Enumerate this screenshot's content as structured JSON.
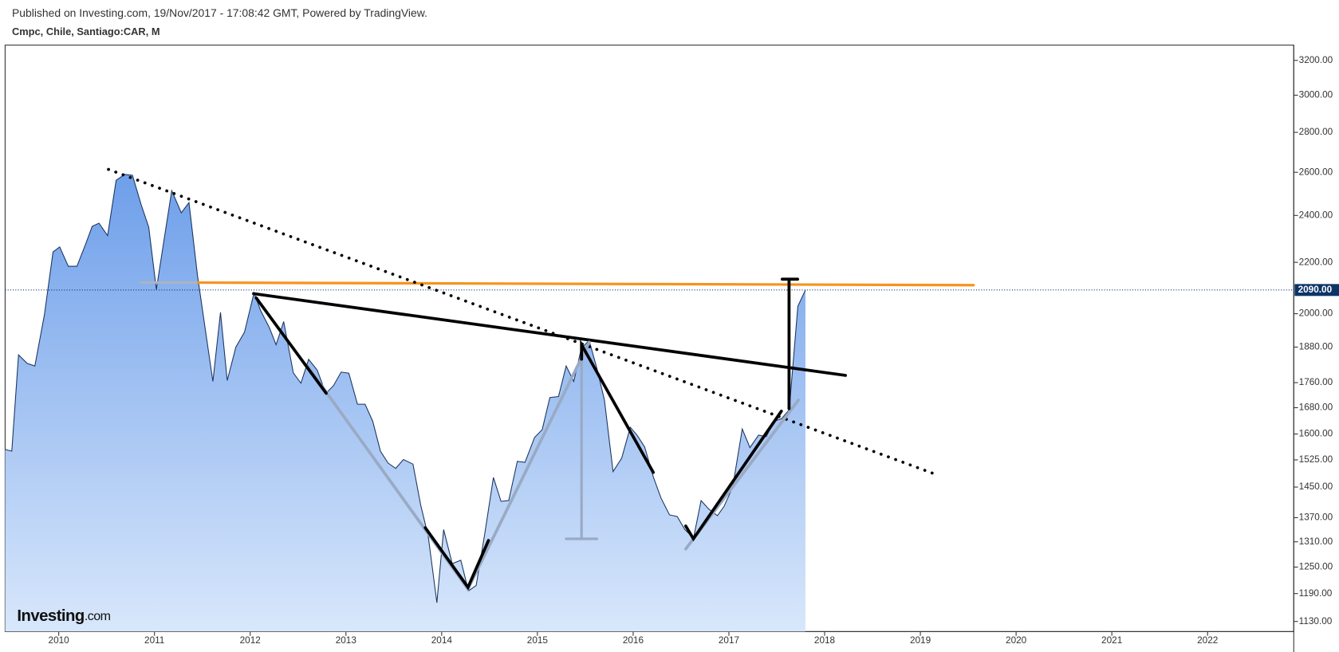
{
  "chart_data": {
    "type": "area",
    "subtitle": "Published on Investing.com, 19/Nov/2017 - 17:08:42 GMT, Powered by TradingView.",
    "title": "Cmpc, Chile, Santiago:CAR, M",
    "watermark": {
      "brand": "Investing",
      "suffix": ".com"
    },
    "color": "#1a3560",
    "fill_top": "#6e9fea",
    "fill_bottom": "#d8e7fb",
    "log_y": true,
    "xlim": [
      2009.44,
      2022.9
    ],
    "xticks": [
      2010,
      2011,
      2012,
      2013,
      2014,
      2015,
      2016,
      2017,
      2018,
      2019,
      2020,
      2021,
      2022
    ],
    "ylim": [
      1109,
      3292
    ],
    "yticks": [
      {
        "value": 1130,
        "label": "1130.00"
      },
      {
        "value": 1190,
        "label": "1190.00"
      },
      {
        "value": 1250,
        "label": "1250.00"
      },
      {
        "value": 1310,
        "label": "1310.00"
      },
      {
        "value": 1370,
        "label": "1370.00"
      },
      {
        "value": 1450,
        "label": "1450.00"
      },
      {
        "value": 1525,
        "label": "1525.00"
      },
      {
        "value": 1600,
        "label": "1600.00"
      },
      {
        "value": 1680,
        "label": "1680.00"
      },
      {
        "value": 1760,
        "label": "1760.00"
      },
      {
        "value": 1880,
        "label": "1880.00"
      },
      {
        "value": 2000,
        "label": "2000.00"
      },
      {
        "value": 2200,
        "label": "2200.00"
      },
      {
        "value": 2400,
        "label": "2400.00"
      },
      {
        "value": 2600,
        "label": "2600.00"
      },
      {
        "value": 2800,
        "label": "2800.00"
      },
      {
        "value": 3000,
        "label": "3000.00"
      },
      {
        "value": 3200,
        "label": "3200.00"
      }
    ],
    "last_price": {
      "value": 2090,
      "label": "2090.00",
      "color": "#0d3466"
    },
    "x": [
      2009.44,
      2009.51,
      2009.58,
      2009.67,
      2009.75,
      2009.85,
      2009.94,
      2010.01,
      2010.1,
      2010.19,
      2010.28,
      2010.35,
      2010.42,
      2010.51,
      2010.6,
      2010.69,
      2010.77,
      2010.86,
      2010.94,
      2011.02,
      2011.1,
      2011.18,
      2011.28,
      2011.36,
      2011.45,
      2011.53,
      2011.61,
      2011.69,
      2011.76,
      2011.85,
      2011.94,
      2012.04,
      2012.11,
      2012.2,
      2012.27,
      2012.35,
      2012.45,
      2012.53,
      2012.61,
      2012.7,
      2012.79,
      2012.87,
      2012.95,
      2013.03,
      2013.12,
      2013.2,
      2013.28,
      2013.36,
      2013.44,
      2013.52,
      2013.6,
      2013.7,
      2013.78,
      2013.86,
      2013.95,
      2014.02,
      2014.11,
      2014.2,
      2014.28,
      2014.36,
      2014.45,
      2014.54,
      2014.62,
      2014.7,
      2014.79,
      2014.87,
      2014.97,
      2015.05,
      2015.13,
      2015.22,
      2015.3,
      2015.38,
      2015.46,
      2015.54,
      2015.62,
      2015.7,
      2015.79,
      2015.88,
      2015.97,
      2016.04,
      2016.12,
      2016.21,
      2016.29,
      2016.38,
      2016.46,
      2016.54,
      2016.63,
      2016.71,
      2016.79,
      2016.88,
      2016.95,
      2017.04,
      2017.14,
      2017.22,
      2017.31,
      2017.39,
      2017.47,
      2017.55,
      2017.63,
      2017.72,
      2017.8
    ],
    "values": [
      1555,
      1550,
      1853,
      1824,
      1815,
      1996,
      2243,
      2264,
      2184,
      2184,
      2275,
      2352,
      2366,
      2312,
      2562,
      2590,
      2586,
      2450,
      2348,
      2092,
      2294,
      2513,
      2412,
      2458,
      2146,
      1945,
      1764,
      2005,
      1767,
      1880,
      1933,
      2079,
      2011,
      1949,
      1888,
      1971,
      1792,
      1758,
      1838,
      1801,
      1725,
      1750,
      1795,
      1791,
      1691,
      1691,
      1638,
      1550,
      1516,
      1501,
      1526,
      1513,
      1403,
      1323,
      1170,
      1340,
      1258,
      1266,
      1196,
      1208,
      1330,
      1476,
      1412,
      1414,
      1521,
      1518,
      1590,
      1613,
      1712,
      1715,
      1815,
      1764,
      1877,
      1903,
      1809,
      1704,
      1492,
      1530,
      1620,
      1597,
      1562,
      1478,
      1421,
      1377,
      1373,
      1340,
      1319,
      1414,
      1392,
      1375,
      1399,
      1450,
      1615,
      1560,
      1597,
      1592,
      1638,
      1646,
      1674,
      2028,
      2090
    ]
  }
}
